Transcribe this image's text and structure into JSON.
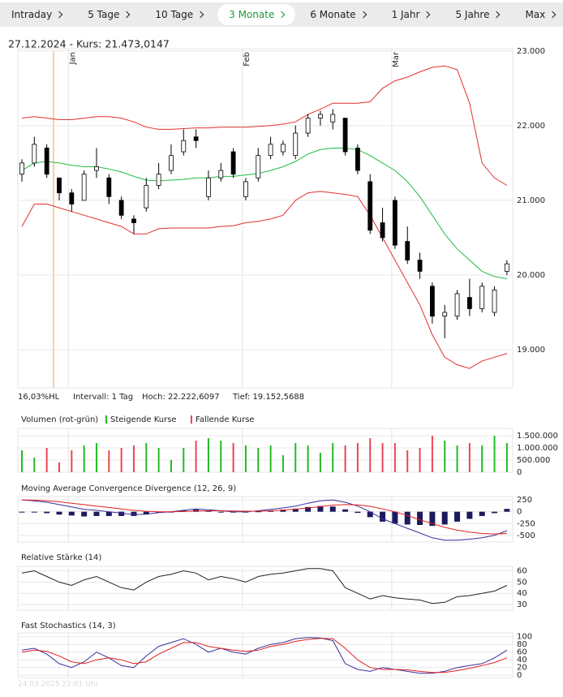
{
  "tabs": [
    "Intraday",
    "5 Tage",
    "10 Tage",
    "3 Monate",
    "6 Monate",
    "1 Jahr",
    "5 Jahre",
    "Max"
  ],
  "active_tab": 3,
  "info": "27.12.2024  -  Kurs: 21.473,0147",
  "stats": [
    "16,03%HL",
    "Intervall: 1 Tag",
    "Hoch: 22.222,6097",
    "Tief: 19.152,5688"
  ],
  "footer": "24.03.2025 22:01 Uhr",
  "chart_data": [
    {
      "type": "candlestick",
      "categories": [
        null,
        null,
        null,
        null,
        "Jan",
        null,
        null,
        null,
        null,
        null,
        null,
        null,
        null,
        null,
        null,
        null,
        null,
        null,
        "Feb",
        null,
        null,
        null,
        null,
        null,
        null,
        null,
        null,
        null,
        null,
        null,
        "Mar",
        null,
        null,
        null,
        null,
        null,
        null,
        null,
        null,
        null
      ],
      "open": [
        21350,
        21500,
        21700,
        21300,
        21100,
        21000,
        21400,
        21300,
        21000,
        20750,
        20900,
        21200,
        21400,
        21650,
        21850,
        21050,
        21300,
        21650,
        21050,
        21300,
        21600,
        21650,
        21600,
        21900,
        22100,
        22050,
        22100,
        21700,
        21250,
        20700,
        21000,
        20450,
        20200,
        19850,
        19450,
        19450,
        19700,
        19550,
        19500,
        20050
      ],
      "high": [
        21550,
        21850,
        21750,
        21300,
        21150,
        21400,
        21700,
        21350,
        21050,
        20800,
        21300,
        21500,
        21750,
        21950,
        21950,
        21400,
        21500,
        21700,
        21300,
        21700,
        21850,
        21800,
        22000,
        22150,
        22200,
        22222,
        22100,
        21750,
        21350,
        20900,
        21050,
        20650,
        20300,
        19900,
        19600,
        19800,
        19950,
        19900,
        19850,
        20200
      ],
      "low": [
        21250,
        21450,
        21300,
        21000,
        20850,
        21000,
        21300,
        20950,
        20750,
        20550,
        20850,
        21150,
        21350,
        21600,
        21700,
        21000,
        21250,
        21300,
        21000,
        21250,
        21550,
        21600,
        21550,
        21850,
        22000,
        21950,
        21600,
        21350,
        20550,
        20450,
        20350,
        20150,
        19950,
        19350,
        19153,
        19400,
        19450,
        19500,
        19450,
        20000
      ],
      "close": [
        21500,
        21750,
        21350,
        21100,
        20950,
        21350,
        21450,
        21050,
        20800,
        20700,
        21200,
        21350,
        21600,
        21800,
        21800,
        21300,
        21400,
        21350,
        21250,
        21600,
        21750,
        21750,
        21900,
        22100,
        22150,
        22150,
        21650,
        21400,
        20600,
        20500,
        20400,
        20200,
        20050,
        19450,
        19500,
        19750,
        19550,
        19850,
        19800,
        20150
      ],
      "rising_color": "#ffffff",
      "falling_color": "#000000",
      "overlays": [
        {
          "color": "#e03030",
          "values": [
            22100,
            22120,
            22100,
            22080,
            22080,
            22100,
            22120,
            22120,
            22100,
            22050,
            21980,
            21950,
            21950,
            21960,
            21970,
            21970,
            21980,
            21980,
            21980,
            21990,
            22000,
            22020,
            22050,
            22150,
            22220,
            22300,
            22300,
            22300,
            22320,
            22500,
            22600,
            22650,
            22720,
            22780,
            22800,
            22750,
            22300,
            21500,
            21300,
            21200
          ]
        },
        {
          "color": "#e03030",
          "values": [
            20650,
            20950,
            20950,
            20900,
            20850,
            20800,
            20750,
            20700,
            20650,
            20550,
            20550,
            20620,
            20630,
            20630,
            20630,
            20630,
            20650,
            20660,
            20700,
            20720,
            20750,
            20800,
            21000,
            21100,
            21120,
            21100,
            21080,
            21050,
            20800,
            20500,
            20200,
            19900,
            19600,
            19200,
            18900,
            18800,
            18750,
            18850,
            18900,
            18950
          ]
        },
        {
          "color": "#22bb44",
          "values": [
            21400,
            21500,
            21520,
            21500,
            21470,
            21450,
            21450,
            21420,
            21380,
            21320,
            21270,
            21260,
            21270,
            21280,
            21300,
            21300,
            21320,
            21320,
            21340,
            21360,
            21400,
            21450,
            21520,
            21620,
            21680,
            21700,
            21700,
            21680,
            21600,
            21500,
            21400,
            21250,
            21050,
            20800,
            20550,
            20350,
            20200,
            20050,
            19980,
            19950
          ]
        }
      ],
      "ylim": [
        18490,
        23030
      ],
      "yticks": [
        {
          "value": 19000,
          "label": "19.000"
        },
        {
          "value": 20000,
          "label": "20.000"
        },
        {
          "value": 21000,
          "label": "21.000"
        },
        {
          "value": 22000,
          "label": "22.000"
        },
        {
          "value": 23000,
          "label": "23.000"
        }
      ],
      "grid": true
    },
    {
      "type": "volume",
      "title": "Volumen (rot-grün)",
      "legend": [
        {
          "name": "Steigende Kurse",
          "color": "#22bb22"
        },
        {
          "name": "Fallende Kurse",
          "color": "#ee4455"
        }
      ],
      "values": [
        900000,
        600000,
        1000000,
        400000,
        900000,
        1100000,
        1200000,
        900000,
        1000000,
        1100000,
        1200000,
        1000000,
        500000,
        1000000,
        1300000,
        1400000,
        1300000,
        1200000,
        1100000,
        1000000,
        1100000,
        700000,
        1200000,
        1100000,
        800000,
        1200000,
        1100000,
        1200000,
        1400000,
        1200000,
        1200000,
        900000,
        1000000,
        1500000,
        1300000,
        1100000,
        1200000,
        1100000,
        1500000,
        1200000
      ],
      "ylim": [
        0,
        1800000
      ],
      "yticks": [
        0,
        {
          "value": 500000,
          "label": "500.000"
        },
        {
          "value": 1000000,
          "label": "1.000.000"
        },
        {
          "value": 1500000,
          "label": "1.500.000"
        }
      ]
    },
    {
      "type": "macd",
      "title": "Moving Average Convergence Divergence (12, 26, 9)",
      "series": [
        {
          "color": "#3a2f9a",
          "values": [
            250,
            230,
            200,
            150,
            100,
            50,
            30,
            0,
            -30,
            -60,
            -50,
            -20,
            0,
            30,
            60,
            40,
            20,
            0,
            0,
            20,
            50,
            80,
            120,
            180,
            230,
            250,
            200,
            120,
            0,
            -150,
            -250,
            -350,
            -450,
            -550,
            -600,
            -600,
            -580,
            -550,
            -500,
            -400
          ]
        },
        {
          "color": "#e02020",
          "values": [
            250,
            245,
            230,
            210,
            180,
            150,
            120,
            90,
            60,
            30,
            10,
            0,
            0,
            5,
            15,
            20,
            20,
            15,
            12,
            12,
            20,
            35,
            55,
            80,
            110,
            140,
            150,
            145,
            115,
            60,
            0,
            -80,
            -170,
            -250,
            -330,
            -390,
            -430,
            -460,
            -470,
            -460
          ]
        }
      ],
      "histogram": {
        "color": "#1c1a5e",
        "values": [
          0,
          -15,
          -30,
          -60,
          -80,
          -100,
          -90,
          -90,
          -90,
          -90,
          -60,
          -20,
          0,
          25,
          45,
          20,
          0,
          -15,
          -12,
          8,
          30,
          45,
          65,
          100,
          120,
          110,
          50,
          -25,
          -115,
          -210,
          -250,
          -270,
          -280,
          -300,
          -270,
          -210,
          -150,
          -90,
          -30,
          60
        ]
      },
      "ylim": [
        -640,
        320
      ],
      "yticks": [
        -500,
        -250,
        0,
        250
      ]
    },
    {
      "type": "line",
      "title": "Relative Stärke (14)",
      "series": [
        {
          "color": "#222222",
          "values": [
            58,
            60,
            55,
            50,
            47,
            52,
            55,
            50,
            45,
            43,
            50,
            55,
            57,
            60,
            58,
            52,
            55,
            53,
            50,
            55,
            57,
            58,
            60,
            62,
            62,
            60,
            45,
            40,
            35,
            38,
            36,
            35,
            34,
            31,
            32,
            37,
            38,
            40,
            42,
            47
          ]
        }
      ],
      "ylim": [
        25,
        64
      ],
      "yticks": [
        30,
        40,
        50,
        60
      ]
    },
    {
      "type": "line",
      "title": "Fast Stochastics (14, 3)",
      "series": [
        {
          "color": "#3a2f9a",
          "values": [
            65,
            70,
            55,
            30,
            20,
            35,
            60,
            45,
            25,
            20,
            50,
            75,
            85,
            95,
            80,
            60,
            70,
            60,
            55,
            70,
            80,
            85,
            95,
            98,
            97,
            90,
            30,
            15,
            10,
            20,
            15,
            10,
            5,
            5,
            10,
            20,
            25,
            30,
            45,
            65
          ]
        },
        {
          "color": "#e02020",
          "values": [
            60,
            65,
            62,
            50,
            35,
            30,
            40,
            45,
            40,
            30,
            35,
            55,
            70,
            85,
            85,
            75,
            70,
            65,
            62,
            65,
            75,
            80,
            88,
            93,
            96,
            95,
            70,
            40,
            20,
            15,
            15,
            14,
            10,
            7,
            7,
            12,
            18,
            25,
            33,
            45
          ]
        }
      ],
      "ylim": [
        -6,
        110
      ],
      "yticks": [
        0,
        20,
        40,
        60,
        80,
        100
      ]
    }
  ]
}
